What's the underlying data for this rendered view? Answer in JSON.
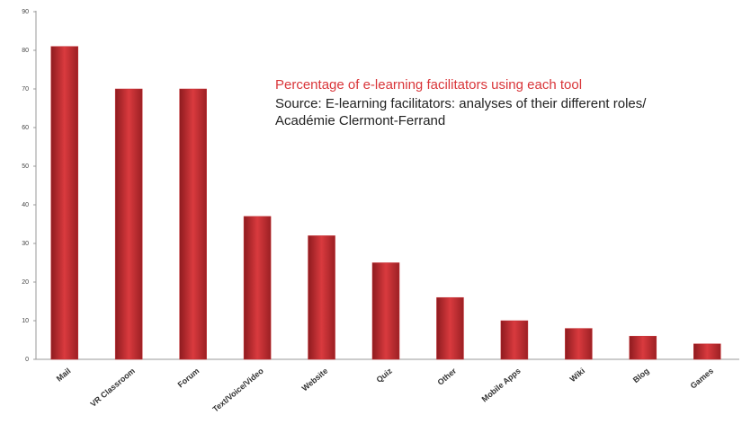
{
  "chart_data": {
    "type": "bar",
    "title": "Percentage of e-learning facilitators using each tool",
    "subtitle": "Source:  E-learning facilitators: analyses of their different roles/ Académie Clermont-Ferrand",
    "categories": [
      "Mail",
      "VR Classroom",
      "Forum",
      "Text/Voice/Video",
      "Website",
      "Quiz",
      "Other",
      "Mobile Apps",
      "Wiki",
      "Blog",
      "Games"
    ],
    "values": [
      81,
      70,
      70,
      37,
      32,
      25,
      16,
      10,
      8,
      6,
      4
    ],
    "color": "#c62f33",
    "ylim": [
      0,
      90
    ],
    "yticks": [
      0,
      10,
      20,
      30,
      40,
      50,
      60,
      70,
      80,
      90
    ],
    "grid": false
  }
}
